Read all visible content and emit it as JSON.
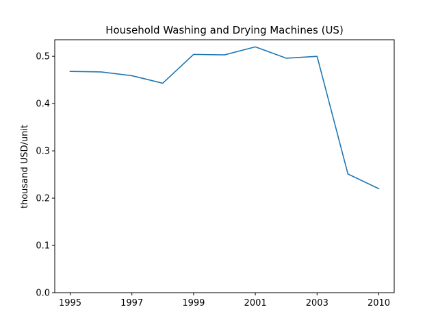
{
  "chart_data": {
    "type": "line",
    "title": "Household Washing and Drying Machines (US)",
    "xlabel": "",
    "ylabel": "thousand USD/unit",
    "categories": [
      "1995",
      "1996",
      "1997",
      "1998",
      "1999",
      "2000",
      "2001",
      "2002",
      "2003",
      "2004",
      "2010"
    ],
    "x_tick_labels": [
      "1995",
      "1997",
      "1999",
      "2001",
      "2003",
      "2010"
    ],
    "series": [
      {
        "values": [
          0.468,
          0.467,
          0.459,
          0.443,
          0.504,
          0.503,
          0.52,
          0.496,
          0.5,
          0.251,
          0.22
        ],
        "color": "#1f77b4"
      }
    ],
    "ylim": [
      0,
      0.535
    ],
    "y_ticks": [
      "0.0",
      "0.1",
      "0.2",
      "0.3",
      "0.4",
      "0.5"
    ],
    "grid": false,
    "legend": "none"
  }
}
